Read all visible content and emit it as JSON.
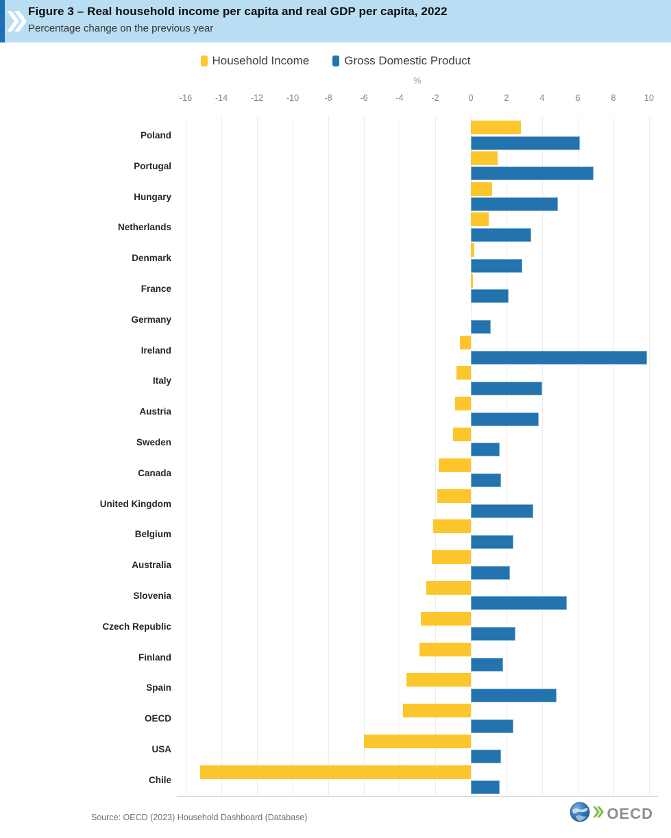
{
  "header": {
    "title": "Figure 3 – Real household income per capita and real GDP per capita, 2022",
    "subtitle": "Percentage change on the previous year"
  },
  "colors": {
    "header_bg": "#B9DDF2",
    "accent_blue": "#1D70B5",
    "household_income": "#FDC62D",
    "gdp": "#2273AE",
    "logo_green": "#86B94C",
    "logo_gray": "#8F8F8F",
    "globe_blue": "#2E72B0"
  },
  "chart_data": {
    "type": "bar",
    "orientation": "horizontal",
    "title": "Figure 3 – Real household income per capita and real GDP per capita, 2022",
    "subtitle": "Percentage change on the previous year",
    "unit_label": "%",
    "xlim": [
      -16.5,
      10.5
    ],
    "ticks": [
      -16,
      -14,
      -12,
      -10,
      -8,
      -6,
      -4,
      -2,
      0,
      2,
      4,
      6,
      8,
      10
    ],
    "grid": true,
    "legend_position": "top",
    "categories": [
      "Poland",
      "Portugal",
      "Hungary",
      "Netherlands",
      "Denmark",
      "France",
      "Germany",
      "Ireland",
      "Italy",
      "Austria",
      "Sweden",
      "Canada",
      "United Kingdom",
      "Belgium",
      "Australia",
      "Slovenia",
      "Czech Republic",
      "Finland",
      "Spain",
      "OECD",
      "USA",
      "Chile"
    ],
    "series": [
      {
        "name": "Household Income",
        "color": "#FDC62D",
        "values": [
          2.8,
          1.5,
          1.2,
          1.0,
          0.2,
          0.1,
          0.0,
          -0.6,
          -0.8,
          -0.9,
          -1.0,
          -1.8,
          -1.9,
          -2.1,
          -2.2,
          -2.5,
          -2.8,
          -2.9,
          -3.6,
          -3.8,
          -6.0,
          -15.2
        ]
      },
      {
        "name": "Gross Domestic Product",
        "color": "#2273AE",
        "values": [
          6.1,
          6.9,
          4.9,
          3.4,
          2.9,
          2.1,
          1.1,
          9.9,
          4.0,
          3.8,
          1.6,
          1.7,
          3.5,
          2.4,
          2.2,
          5.4,
          2.5,
          1.8,
          4.8,
          2.4,
          1.7,
          1.6
        ]
      }
    ]
  },
  "footer": {
    "source": "Source: OECD (2023) Household Dashboard (Database)",
    "logo_text": "OECD"
  }
}
